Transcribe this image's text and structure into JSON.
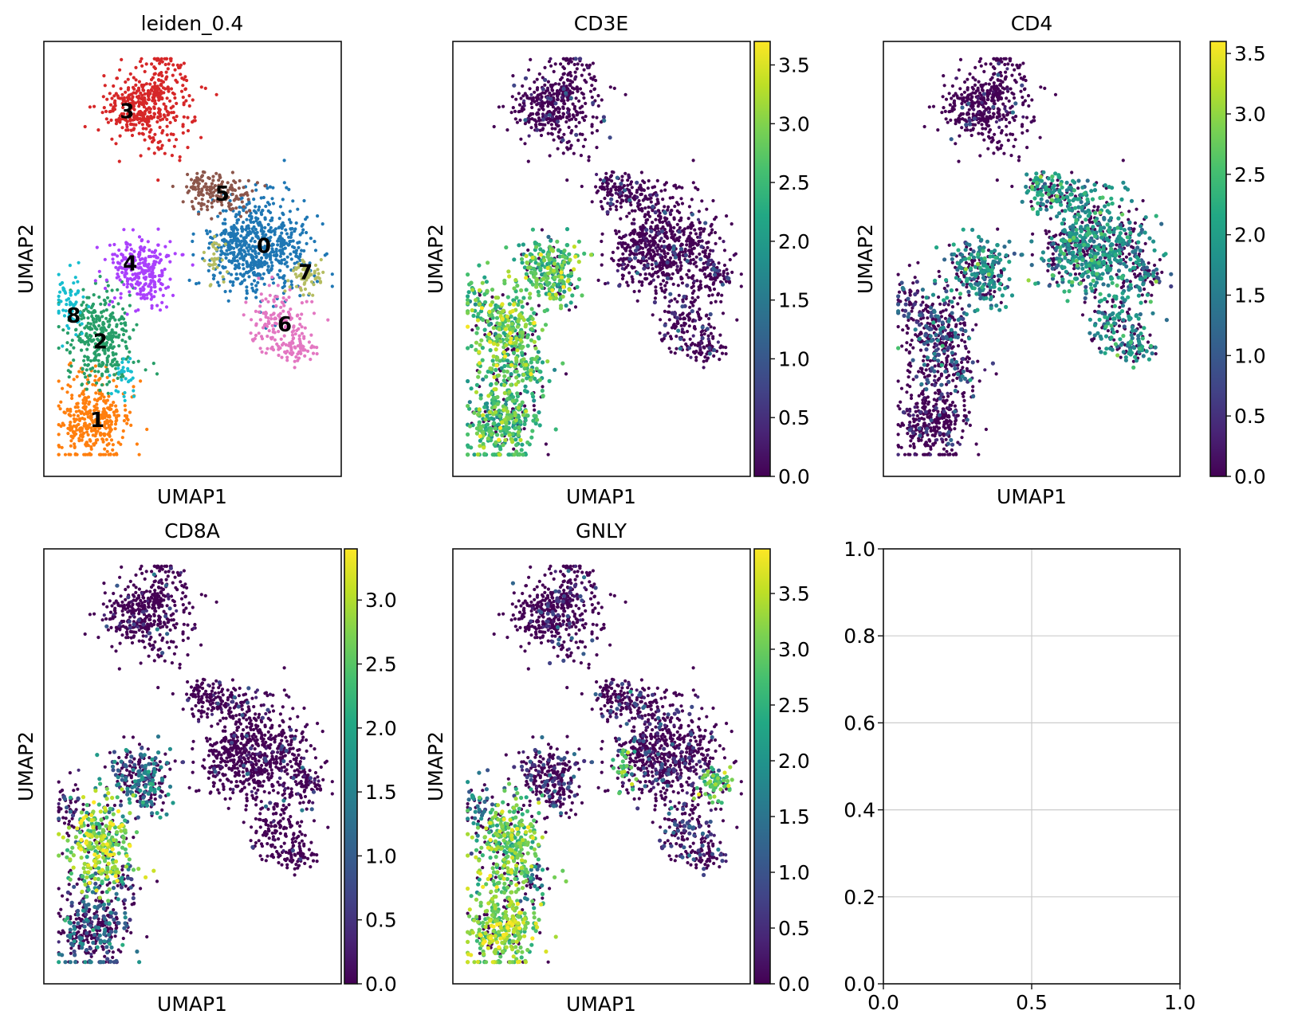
{
  "figure": {
    "layout": "2 rows x 3 columns"
  },
  "chart_data": [
    {
      "type": "scatter",
      "title": "leiden_0.4",
      "xlabel": "UMAP1",
      "ylabel": "UMAP2",
      "color_mode": "categorical",
      "clusters": [
        {
          "label": "0",
          "color": "#1f77b4"
        },
        {
          "label": "1",
          "color": "#ff7f0e"
        },
        {
          "label": "2",
          "color": "#279e68"
        },
        {
          "label": "3",
          "color": "#d62728"
        },
        {
          "label": "4",
          "color": "#aa40fc"
        },
        {
          "label": "5",
          "color": "#8c564b"
        },
        {
          "label": "6",
          "color": "#e377c2"
        },
        {
          "label": "7",
          "color": "#b5bd61"
        },
        {
          "label": "8",
          "color": "#17becf"
        }
      ]
    },
    {
      "type": "scatter",
      "title": "CD3E",
      "xlabel": "UMAP1",
      "ylabel": "UMAP2",
      "color_mode": "continuous",
      "colormap": "viridis",
      "colorbar": {
        "min": 0.0,
        "max": 3.7,
        "ticks": [
          "0.0",
          "0.5",
          "1.0",
          "1.5",
          "2.0",
          "2.5",
          "3.0",
          "3.5"
        ]
      },
      "cluster_mean_expression": {
        "0": 0.1,
        "1": 2.2,
        "2": 2.4,
        "3": 0.1,
        "4": 2.3,
        "5": 0.2,
        "6": 0.3,
        "7": 0.3,
        "8": 2.2
      }
    },
    {
      "type": "scatter",
      "title": "CD4",
      "xlabel": "UMAP1",
      "ylabel": "UMAP2",
      "color_mode": "continuous",
      "colormap": "viridis",
      "colorbar": {
        "min": 0.0,
        "max": 3.6,
        "ticks": [
          "0.0",
          "0.5",
          "1.0",
          "1.5",
          "2.0",
          "2.5",
          "3.0",
          "3.5"
        ]
      },
      "cluster_mean_expression": {
        "0": 1.5,
        "1": 0.2,
        "2": 0.8,
        "3": 0.1,
        "4": 1.4,
        "5": 1.6,
        "6": 1.5,
        "7": 1.0,
        "8": 0.7
      }
    },
    {
      "type": "scatter",
      "title": "CD8A",
      "xlabel": "UMAP1",
      "ylabel": "UMAP2",
      "color_mode": "continuous",
      "colormap": "viridis",
      "colorbar": {
        "min": 0.0,
        "max": 3.4,
        "ticks": [
          "0.0",
          "0.5",
          "1.0",
          "1.5",
          "2.0",
          "2.5",
          "3.0"
        ]
      },
      "cluster_mean_expression": {
        "0": 0.05,
        "1": 0.8,
        "2": 2.4,
        "3": 0.05,
        "4": 0.9,
        "5": 0.05,
        "6": 0.05,
        "7": 0.1,
        "8": 0.6
      }
    },
    {
      "type": "scatter",
      "title": "GNLY",
      "xlabel": "UMAP1",
      "ylabel": "UMAP2",
      "color_mode": "continuous",
      "colormap": "viridis",
      "colorbar": {
        "min": 0.0,
        "max": 3.9,
        "ticks": [
          "0.0",
          "0.5",
          "1.0",
          "1.5",
          "2.0",
          "2.5",
          "3.0",
          "3.5"
        ]
      },
      "cluster_mean_expression": {
        "0": 0.3,
        "1": 2.8,
        "2": 2.6,
        "3": 0.2,
        "4": 0.4,
        "5": 0.3,
        "6": 0.5,
        "7": 2.5,
        "8": 1.2
      }
    },
    {
      "type": "line",
      "title": "",
      "series": [],
      "xlim": [
        0.0,
        1.0
      ],
      "ylim": [
        0.0,
        1.0
      ],
      "xticks": [
        "0.0",
        "0.5",
        "1.0"
      ],
      "yticks": [
        "0.0",
        "0.2",
        "0.4",
        "0.6",
        "0.8",
        "1.0"
      ],
      "grid": true
    }
  ]
}
